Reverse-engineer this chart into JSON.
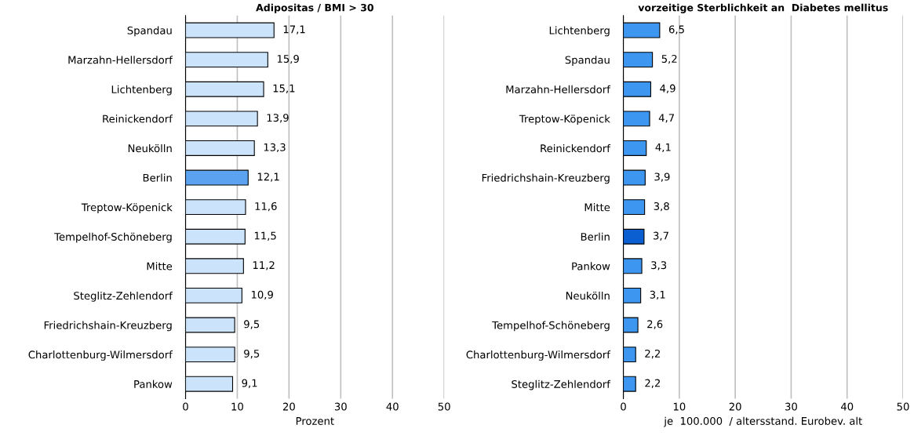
{
  "chart_data": [
    {
      "type": "bar",
      "orientation": "horizontal",
      "title": "Adipositas / BMI > 30",
      "xlabel": "Prozent",
      "categories": [
        "Spandau",
        "Marzahn-Hellersdorf",
        "Lichtenberg",
        "Reinickendorf",
        "Neukölln",
        "Berlin",
        "Treptow-Köpenick",
        "Tempelhof-Schöneberg",
        "Mitte",
        "Steglitz-Zehlendorf",
        "Friedrichshain-Kreuzberg",
        "Charlottenburg-Wilmersdorf",
        "Pankow"
      ],
      "values": [
        17.1,
        15.9,
        15.1,
        13.9,
        13.3,
        12.1,
        11.6,
        11.5,
        11.2,
        10.9,
        9.5,
        9.5,
        9.1
      ],
      "value_labels": [
        "17,1",
        "15,9",
        "15,1",
        "13,9",
        "13,3",
        "12,1",
        "11,6",
        "11,5",
        "11,2",
        "10,9",
        "9,5",
        "9,5",
        "9,1"
      ],
      "colors": [
        "#cce4fb",
        "#cce4fb",
        "#cce4fb",
        "#cce4fb",
        "#cce4fb",
        "#5ba3f0",
        "#cce4fb",
        "#cce4fb",
        "#cce4fb",
        "#cce4fb",
        "#cce4fb",
        "#cce4fb",
        "#cce4fb"
      ],
      "xlim": [
        0,
        50
      ],
      "xticks": [
        0,
        10,
        20,
        30,
        40,
        50
      ],
      "grid": "x"
    },
    {
      "type": "bar",
      "orientation": "horizontal",
      "title": "vorzeitige Sterblichkeit an  Diabetes mellitus",
      "xlabel": "je  100.000  / altersstand. Eurobev. alt",
      "categories": [
        "Lichtenberg",
        "Spandau",
        "Marzahn-Hellersdorf",
        "Treptow-Köpenick",
        "Reinickendorf",
        "Friedrichshain-Kreuzberg",
        "Mitte",
        "Berlin",
        "Pankow",
        "Neukölln",
        "Tempelhof-Schöneberg",
        "Charlottenburg-Wilmersdorf",
        "Steglitz-Zehlendorf"
      ],
      "values": [
        6.5,
        5.2,
        4.9,
        4.7,
        4.1,
        3.9,
        3.8,
        3.7,
        3.3,
        3.1,
        2.6,
        2.2,
        2.2
      ],
      "value_labels": [
        "6,5",
        "5,2",
        "4,9",
        "4,7",
        "4,1",
        "3,9",
        "3,8",
        "3,7",
        "3,3",
        "3,1",
        "2,6",
        "2,2",
        "2,2"
      ],
      "colors": [
        "#3d97f0",
        "#3d97f0",
        "#3d97f0",
        "#3d97f0",
        "#3d97f0",
        "#3d97f0",
        "#3d97f0",
        "#0b5fd0",
        "#3d97f0",
        "#3d97f0",
        "#3d97f0",
        "#3d97f0",
        "#3d97f0"
      ],
      "xlim": [
        0,
        50
      ],
      "xticks": [
        0,
        10,
        20,
        30,
        40,
        50
      ],
      "grid": "x"
    }
  ]
}
